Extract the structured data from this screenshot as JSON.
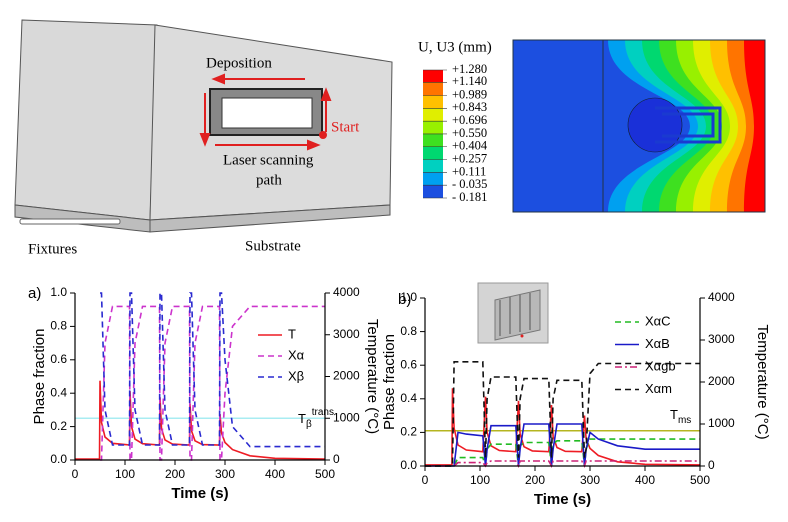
{
  "schematic": {
    "labels": {
      "deposition": "Deposition",
      "start": "Start",
      "path_line1": "Laser scanning",
      "path_line2": "path",
      "fixtures": "Fixtures",
      "substrate": "Substrate"
    }
  },
  "contour": {
    "legend_title": "U, U3 (mm)",
    "levels": [
      {
        "value": 1.28,
        "label": "+1.280"
      },
      {
        "value": 1.14,
        "label": "+1.140"
      },
      {
        "value": 0.989,
        "label": "+0.989"
      },
      {
        "value": 0.843,
        "label": "+0.843"
      },
      {
        "value": 0.696,
        "label": "+0.696"
      },
      {
        "value": 0.55,
        "label": "+0.550"
      },
      {
        "value": 0.404,
        "label": "+0.404"
      },
      {
        "value": 0.257,
        "label": "+0.257"
      },
      {
        "value": 0.111,
        "label": "+0.111"
      },
      {
        "value": -0.035,
        "label": "- 0.035"
      },
      {
        "value": -0.181,
        "label": "- 0.181"
      }
    ],
    "colors": [
      "#ff0000",
      "#ff7400",
      "#ffc000",
      "#e0ee00",
      "#98f000",
      "#3ee020",
      "#00d870",
      "#00d0c0",
      "#00a0f0",
      "#1c4fe0"
    ]
  },
  "chart_data": [
    {
      "type": "line",
      "panel_label": "a)",
      "xlabel": "Time (s)",
      "ylabel": "Phase fraction",
      "y2label": "Temperature (°C)",
      "xlim": [
        0,
        500
      ],
      "xticks": [
        0,
        100,
        200,
        300,
        400,
        500
      ],
      "ylim": [
        0,
        1
      ],
      "yticks": [
        {
          "value": 0,
          "label": "0.0"
        },
        0.2,
        0.4,
        0.6,
        0.8,
        {
          "value": 1,
          "label": "1.0"
        }
      ],
      "y2lim": [
        0,
        4000
      ],
      "y2ticks": [
        0,
        1000,
        2000,
        3000,
        4000
      ],
      "legend": "upper right",
      "x": [
        0,
        49,
        50,
        53,
        60,
        75,
        109,
        110,
        113,
        120,
        135,
        169,
        170,
        173,
        180,
        195,
        229,
        230,
        233,
        240,
        255,
        289,
        290,
        293,
        300,
        315,
        350,
        400,
        500
      ],
      "series": [
        {
          "name": "T",
          "color": "#ee1c24",
          "dash": "solid",
          "axis": "y2",
          "values": [
            25,
            25,
            1900,
            900,
            550,
            400,
            360,
            1650,
            800,
            500,
            390,
            360,
            1500,
            750,
            480,
            380,
            360,
            1350,
            700,
            460,
            370,
            360,
            1100,
            650,
            420,
            250,
            100,
            40,
            25
          ]
        },
        {
          "name": "Xα",
          "color": "#cc33cc",
          "dash": "dashed",
          "values": [
            null,
            null,
            0,
            0,
            0.7,
            0.92,
            0.92,
            0,
            0,
            0.7,
            0.92,
            0.92,
            0,
            0,
            0.7,
            0.92,
            0.92,
            0,
            0,
            0.7,
            0.92,
            0.92,
            0,
            0,
            0.4,
            0.8,
            0.92,
            0.92,
            0.92
          ]
        },
        {
          "name": "Xβ",
          "color": "#2a2ad0",
          "dash": "dashed",
          "values": [
            null,
            null,
            1,
            1,
            0.3,
            0.09,
            0.09,
            1,
            1,
            0.3,
            0.09,
            0.09,
            1,
            1,
            0.3,
            0.09,
            0.09,
            1,
            1,
            0.3,
            0.09,
            0.09,
            1,
            1,
            0.6,
            0.2,
            0.08,
            0.08,
            0.08
          ]
        }
      ],
      "threshold": {
        "label": "T",
        "subscript": "β",
        "superscript": "trans",
        "value": 1000,
        "axis": "y2",
        "color": "#a8ecf2"
      }
    },
    {
      "type": "line",
      "panel_label": "b)",
      "xlabel": "Time (s)",
      "ylabel": "Phase fraction",
      "y2label": "Temperature (°C)",
      "xlim": [
        0,
        500
      ],
      "xticks": [
        0,
        100,
        200,
        300,
        400,
        500
      ],
      "ylim": [
        0,
        1
      ],
      "yticks": [
        {
          "value": 0,
          "label": "0.0"
        },
        0.2,
        0.4,
        0.6,
        0.8,
        {
          "value": 1,
          "label": "1.0"
        }
      ],
      "y2lim": [
        0,
        4000
      ],
      "y2ticks": [
        0,
        1000,
        2000,
        3000,
        4000
      ],
      "legend": "upper right",
      "x": [
        0,
        49,
        50,
        53,
        60,
        75,
        105,
        110,
        113,
        120,
        135,
        165,
        170,
        173,
        180,
        195,
        225,
        230,
        233,
        240,
        255,
        285,
        290,
        293,
        300,
        315,
        350,
        400,
        500
      ],
      "series": [
        {
          "color": "#ee1c24",
          "dash": "solid",
          "axis": "y2",
          "values": [
            25,
            25,
            1850,
            900,
            500,
            380,
            340,
            1650,
            800,
            480,
            370,
            340,
            1550,
            760,
            460,
            360,
            340,
            1450,
            700,
            440,
            350,
            340,
            1200,
            650,
            420,
            250,
            100,
            40,
            25
          ]
        },
        {
          "name": "XαC",
          "color": "#22bb22",
          "dash": "dashed",
          "values": [
            0,
            0,
            0,
            0,
            0.05,
            0.05,
            0.05,
            0,
            0.1,
            0.13,
            0.13,
            0.13,
            0,
            0.12,
            0.14,
            0.14,
            0.14,
            0,
            0.13,
            0.15,
            0.15,
            0.15,
            0,
            0.1,
            0.16,
            0.16,
            0.16,
            0.16,
            0.16
          ]
        },
        {
          "name": "XαB",
          "color": "#1a1ac8",
          "dash": "solid",
          "values": [
            0,
            0,
            0,
            0,
            0.2,
            0.19,
            0.18,
            0,
            0.1,
            0.24,
            0.24,
            0.24,
            0,
            0.1,
            0.25,
            0.25,
            0.25,
            0,
            0.1,
            0.25,
            0.25,
            0.25,
            0,
            0.1,
            0.2,
            0.16,
            0.12,
            0.1,
            0.1
          ]
        },
        {
          "name": "Xαgb",
          "color": "#cc2277",
          "dash": "dashdot",
          "values": [
            0,
            0,
            0,
            0,
            0.02,
            0.02,
            0.02,
            0,
            0.02,
            0.03,
            0.03,
            0.03,
            0,
            0.03,
            0.03,
            0.03,
            0.03,
            0,
            0.03,
            0.03,
            0.03,
            0.03,
            0,
            0.03,
            0.03,
            0.03,
            0.03,
            0.03,
            0.03
          ]
        },
        {
          "name": "Xαm",
          "color": "#111111",
          "dash": "dashed",
          "values": [
            0,
            0,
            0,
            0.62,
            0.62,
            0.62,
            0.62,
            0.05,
            0.4,
            0.53,
            0.53,
            0.53,
            0.05,
            0.4,
            0.52,
            0.52,
            0.52,
            0.05,
            0.4,
            0.51,
            0.51,
            0.51,
            0.05,
            0.1,
            0.55,
            0.61,
            0.61,
            0.61,
            0.61
          ]
        }
      ],
      "threshold": {
        "label": "T",
        "subscript": "ms",
        "value": 840,
        "axis": "y2",
        "color": "#b5b520"
      }
    }
  ]
}
